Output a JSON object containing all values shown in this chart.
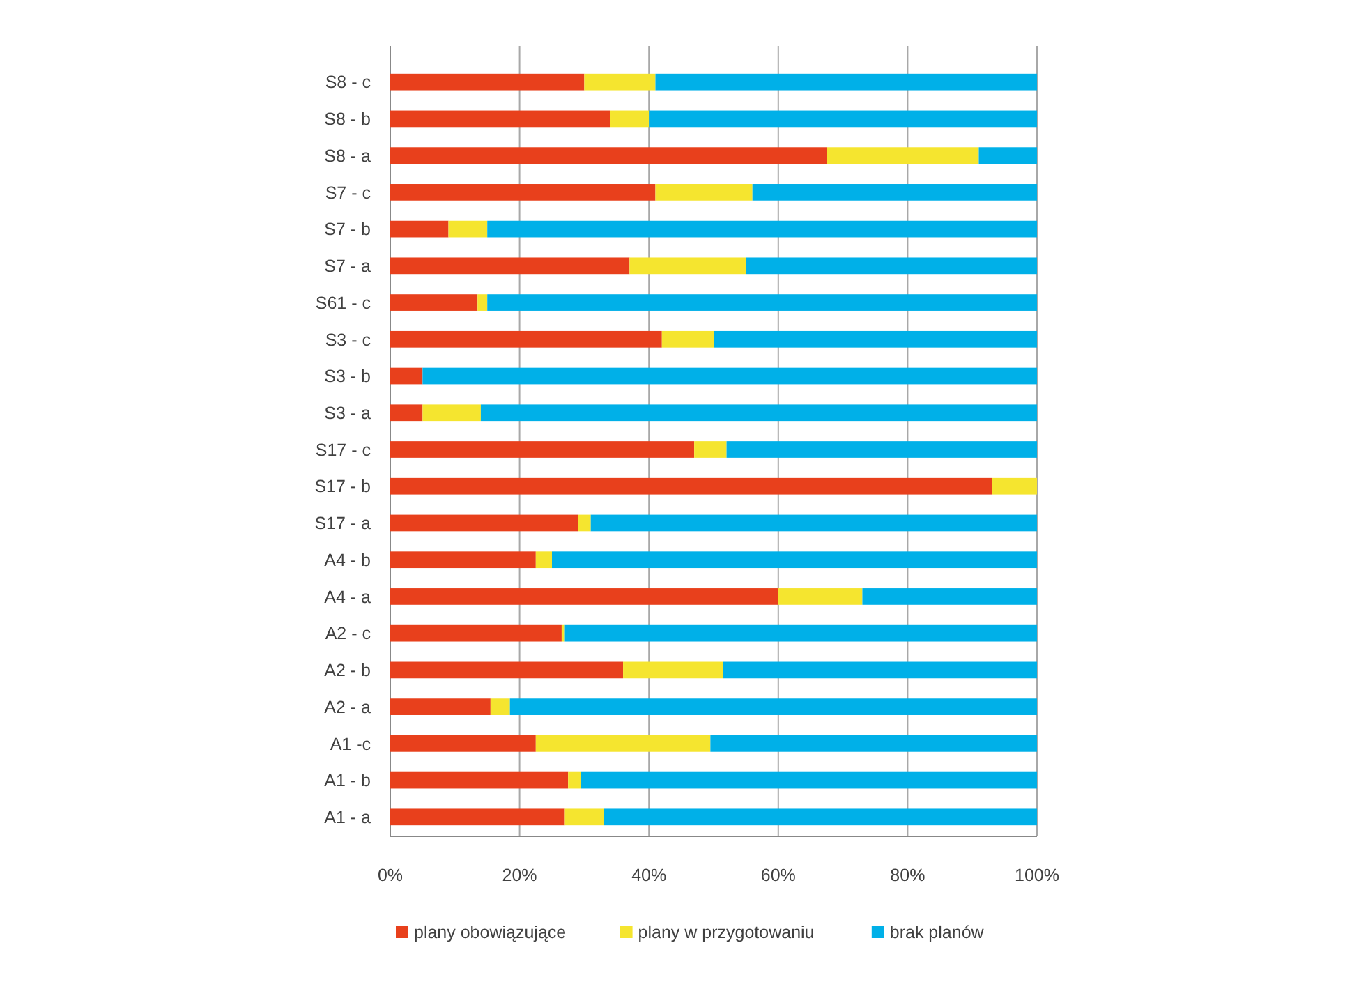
{
  "chart_data": {
    "type": "bar",
    "orientation": "horizontal",
    "stacked": true,
    "categories": [
      "S8 - c",
      "S8 - b",
      "S8 - a",
      "S7 - c",
      "S7 - b",
      "S7 - a",
      "S61 - c",
      "S3 - c",
      "S3 - b",
      "S3 - a",
      "S17 - c",
      "S17 - b",
      "S17 - a",
      "A4 - b",
      "A4 - a",
      "A2 - c",
      "A2 - b",
      "A2 - a",
      "A1 -c",
      "A1 - b",
      "A1 - a"
    ],
    "series": [
      {
        "name": "plany obowiązujące",
        "color": "#e8401c",
        "values": [
          30,
          34,
          67.5,
          41,
          9,
          37,
          13.5,
          42,
          5,
          5,
          47,
          93,
          29,
          22.5,
          60,
          26.5,
          36,
          15.5,
          22.5,
          27.5,
          27
        ]
      },
      {
        "name": "plany w przygotowaniu",
        "color": "#f5e52f",
        "values": [
          11,
          6,
          23.5,
          15,
          6,
          18,
          1.5,
          8,
          0,
          9,
          5,
          7,
          2,
          2.5,
          13,
          0.5,
          15.5,
          3,
          27,
          2,
          6
        ]
      },
      {
        "name": "brak planów",
        "color": "#00b0e8",
        "values": [
          59,
          60,
          9,
          44,
          85,
          45,
          85,
          50,
          95,
          86,
          48,
          0,
          69,
          75,
          27,
          73,
          48.5,
          81.5,
          50.5,
          70.5,
          67
        ]
      }
    ],
    "xlim": [
      0,
      100
    ],
    "xticks": [
      {
        "value": 0,
        "label": "0%"
      },
      {
        "value": 20,
        "label": "20%"
      },
      {
        "value": 40,
        "label": "40%"
      },
      {
        "value": 60,
        "label": "60%"
      },
      {
        "value": 80,
        "label": "80%"
      },
      {
        "value": 100,
        "label": "100%"
      }
    ],
    "grid": "x",
    "legend": "bottom"
  }
}
